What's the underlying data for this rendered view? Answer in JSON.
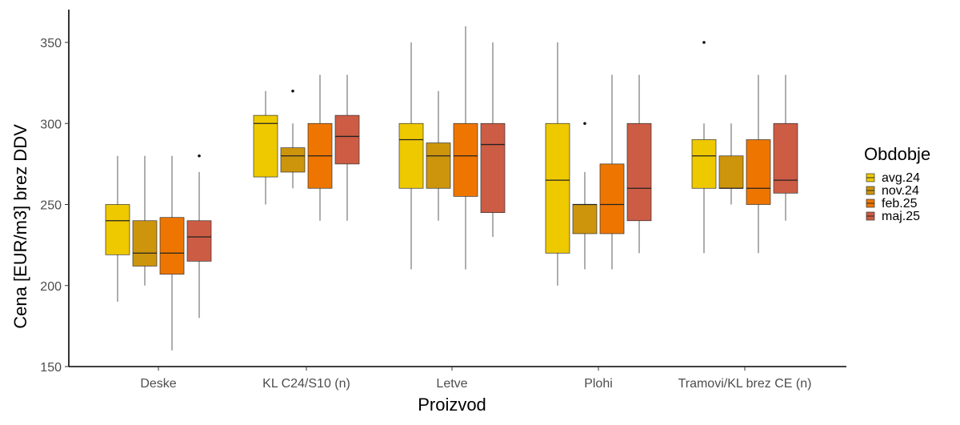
{
  "chart_data": {
    "type": "boxplot",
    "xlabel": "Proizvod",
    "ylabel": "Cena [EUR/m3] brez DDV",
    "ylim": [
      150,
      365
    ],
    "yticks": [
      150,
      200,
      250,
      300,
      350
    ],
    "grid": false,
    "legend": {
      "title": "Obdobje",
      "placement": "right",
      "entries": [
        "avg.24",
        "nov.24",
        "feb.25",
        "maj.25"
      ]
    },
    "series_colors": [
      "#EEC900",
      "#CD950C",
      "#EE7600",
      "#CD5C44"
    ],
    "categories": [
      "Deske",
      "KL C24/S10 (n)",
      "Letve",
      "Plohi",
      "Tramovi/KL brez CE (n)"
    ],
    "groups": [
      {
        "category": "Deske",
        "boxes": [
          {
            "series": "avg.24",
            "min": 190,
            "q1": 219,
            "median": 240,
            "q3": 250,
            "max": 280,
            "outliers": []
          },
          {
            "series": "nov.24",
            "min": 200,
            "q1": 212,
            "median": 220,
            "q3": 240,
            "max": 280,
            "outliers": []
          },
          {
            "series": "feb.25",
            "min": 160,
            "q1": 207,
            "median": 220,
            "q3": 242,
            "max": 280,
            "outliers": []
          },
          {
            "series": "maj.25",
            "min": 180,
            "q1": 215,
            "median": 230,
            "q3": 240,
            "max": 270,
            "outliers": [
              280
            ]
          }
        ]
      },
      {
        "category": "KL C24/S10 (n)",
        "boxes": [
          {
            "series": "avg.24",
            "min": 250,
            "q1": 267,
            "median": 300,
            "q3": 305,
            "max": 320,
            "outliers": []
          },
          {
            "series": "nov.24",
            "min": 260,
            "q1": 270,
            "median": 280,
            "q3": 285,
            "max": 300,
            "outliers": [
              320
            ]
          },
          {
            "series": "feb.25",
            "min": 240,
            "q1": 260,
            "median": 280,
            "q3": 300,
            "max": 330,
            "outliers": []
          },
          {
            "series": "maj.25",
            "min": 240,
            "q1": 275,
            "median": 292,
            "q3": 305,
            "max": 330,
            "outliers": []
          }
        ]
      },
      {
        "category": "Letve",
        "boxes": [
          {
            "series": "avg.24",
            "min": 210,
            "q1": 260,
            "median": 290,
            "q3": 300,
            "max": 350,
            "outliers": []
          },
          {
            "series": "nov.24",
            "min": 240,
            "q1": 260,
            "median": 280,
            "q3": 288,
            "max": 320,
            "outliers": []
          },
          {
            "series": "feb.25",
            "min": 210,
            "q1": 255,
            "median": 280,
            "q3": 300,
            "max": 360,
            "outliers": []
          },
          {
            "series": "maj.25",
            "min": 230,
            "q1": 245,
            "median": 287,
            "q3": 300,
            "max": 350,
            "outliers": []
          }
        ]
      },
      {
        "category": "Plohi",
        "boxes": [
          {
            "series": "avg.24",
            "min": 200,
            "q1": 220,
            "median": 265,
            "q3": 300,
            "max": 350,
            "outliers": []
          },
          {
            "series": "nov.24",
            "min": 210,
            "q1": 232,
            "median": 250,
            "q3": 250,
            "max": 270,
            "outliers": [
              300
            ]
          },
          {
            "series": "feb.25",
            "min": 210,
            "q1": 232,
            "median": 250,
            "q3": 275,
            "max": 330,
            "outliers": []
          },
          {
            "series": "maj.25",
            "min": 220,
            "q1": 240,
            "median": 260,
            "q3": 300,
            "max": 330,
            "outliers": []
          }
        ]
      },
      {
        "category": "Tramovi/KL brez CE (n)",
        "boxes": [
          {
            "series": "avg.24",
            "min": 220,
            "q1": 260,
            "median": 280,
            "q3": 290,
            "max": 300,
            "outliers": [
              350
            ]
          },
          {
            "series": "nov.24",
            "min": 250,
            "q1": 260,
            "median": 260,
            "q3": 280,
            "max": 300,
            "outliers": []
          },
          {
            "series": "feb.25",
            "min": 220,
            "q1": 250,
            "median": 260,
            "q3": 290,
            "max": 330,
            "outliers": []
          },
          {
            "series": "maj.25",
            "min": 240,
            "q1": 257,
            "median": 265,
            "q3": 300,
            "max": 330,
            "outliers": []
          }
        ]
      }
    ]
  }
}
